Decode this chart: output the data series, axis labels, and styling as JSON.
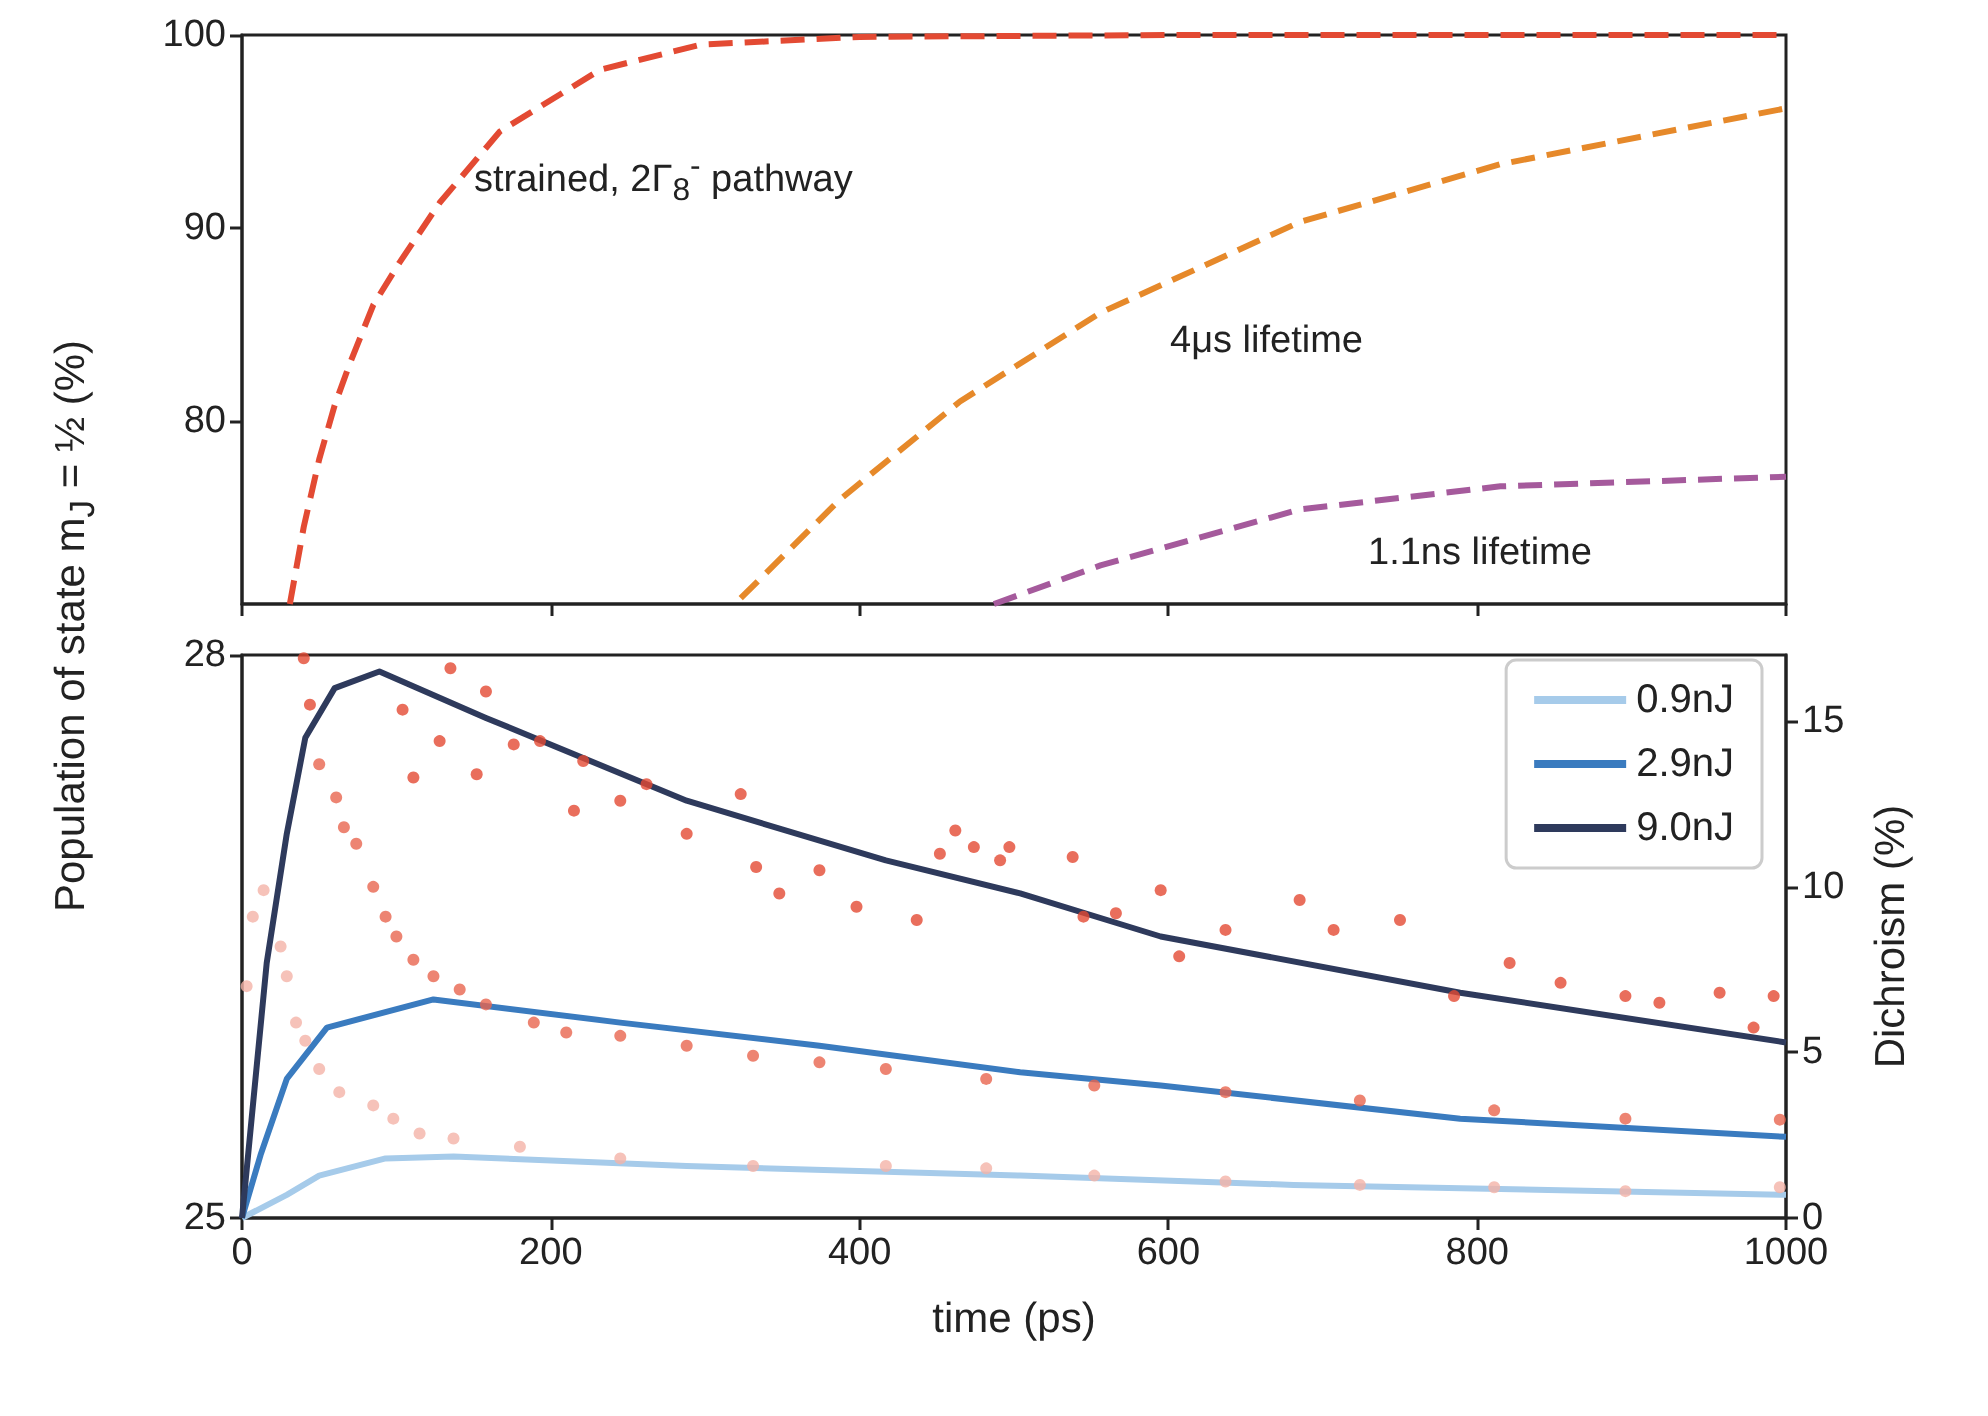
{
  "chart_data": [
    {
      "type": "line",
      "ylabel": "Population of state m$_{J}$ = ½ (%)",
      "xlim": [
        0,
        1000
      ],
      "xticks": [
        0,
        200,
        400,
        600,
        800,
        1000
      ],
      "ylim": [
        70.5,
        100
      ],
      "yticks": [
        80,
        90,
        100
      ],
      "tick_labels": "y",
      "line_style": "dashed",
      "marker": "none",
      "grid": false,
      "legend": false,
      "annotations": [
        "strained, 2Γ$_{8}$$^{-}$ pathway",
        "4μs lifetime",
        "1.1ns lifetime"
      ],
      "series": [
        {
          "color": "#e34a33",
          "x": [
            31,
            40,
            50,
            60,
            70,
            85,
            102,
            128,
            167,
            232,
            297,
            400,
            600,
            800,
            1000
          ],
          "values": [
            70.5,
            74.5,
            78,
            80.8,
            83,
            86,
            88.2,
            91.3,
            95,
            98.2,
            99.5,
            99.9,
            100,
            100,
            100
          ]
        },
        {
          "color": "#e6892a",
          "x": [
            323,
            387,
            465,
            556,
            685,
            815,
            1000
          ],
          "values": [
            70.8,
            75.9,
            81,
            85.6,
            90.3,
            93.3,
            96.2
          ]
        },
        {
          "color": "#a55a9c",
          "x": [
            487,
            556,
            685,
            815,
            1000
          ],
          "values": [
            70.5,
            72.5,
            75.4,
            76.6,
            77.1
          ]
        }
      ]
    },
    {
      "type": "line",
      "xlabel": "time (ps)",
      "y2label": "Dichroism (%)",
      "xlim": [
        0,
        1000
      ],
      "xticks": [
        0,
        200,
        400,
        600,
        800,
        1000
      ],
      "ylim": [
        25,
        28
      ],
      "yticks": [
        25,
        28
      ],
      "y2lim": [
        0,
        17
      ],
      "y2ticks": [
        0,
        5,
        10,
        15
      ],
      "grid": false,
      "legend": "top right",
      "series": [
        {
          "type": "scatter",
          "axis": "y2",
          "color": "#f4b3a8",
          "x": [
            3,
            7,
            14,
            25,
            29,
            35,
            41,
            50,
            63,
            85,
            98,
            115,
            137,
            180,
            245,
            331,
            417,
            482,
            552,
            637,
            724,
            811,
            896,
            996
          ],
          "values": [
            7.0,
            9.1,
            9.9,
            8.2,
            7.3,
            5.9,
            5.35,
            4.5,
            3.8,
            3.4,
            3.0,
            2.55,
            2.4,
            2.15,
            1.8,
            1.57,
            1.57,
            1.5,
            1.28,
            1.1,
            1.0,
            0.93,
            0.81,
            0.93
          ]
        },
        {
          "type": "scatter",
          "axis": "y2",
          "color": "#e8654f",
          "x": [
            50,
            61,
            66,
            74,
            85,
            93,
            100,
            111,
            124,
            141,
            158,
            189,
            210,
            245,
            288,
            331,
            374,
            417,
            482,
            552,
            637,
            724,
            811,
            896,
            996
          ],
          "values": [
            13.7,
            12.7,
            11.8,
            11.3,
            10.0,
            9.1,
            8.5,
            7.8,
            7.3,
            6.9,
            6.45,
            5.9,
            5.6,
            5.5,
            5.2,
            4.9,
            4.7,
            4.5,
            4.2,
            4.0,
            3.8,
            3.55,
            3.25,
            3.0,
            2.97
          ]
        },
        {
          "type": "scatter",
          "axis": "y2",
          "color": "#e34a33",
          "x": [
            40,
            44,
            104,
            111,
            128,
            135,
            152,
            158,
            176,
            193,
            215,
            221,
            245,
            262,
            288,
            323,
            333,
            348,
            374,
            398,
            437,
            452,
            462,
            474,
            491,
            497,
            538,
            545,
            566,
            595,
            607,
            637,
            685,
            707,
            750,
            785,
            821,
            854,
            896,
            918,
            957,
            979,
            992
          ],
          "values": [
            16.9,
            15.5,
            15.35,
            13.3,
            14.4,
            16.6,
            13.4,
            15.9,
            14.3,
            14.4,
            12.3,
            13.8,
            12.6,
            13.1,
            11.6,
            12.8,
            10.6,
            9.8,
            10.5,
            9.4,
            9.0,
            11.0,
            11.7,
            11.2,
            10.8,
            11.2,
            10.9,
            9.1,
            9.2,
            9.9,
            7.9,
            8.7,
            9.6,
            8.7,
            9.0,
            6.7,
            7.7,
            7.1,
            6.7,
            6.5,
            6.8,
            5.75,
            6.7
          ]
        },
        {
          "name": "0.9nJ",
          "axis": "y2",
          "color": "#a6cbea",
          "x": [
            0,
            29,
            50,
            93,
            137,
            288,
            504,
            681,
            1000
          ],
          "values": [
            0,
            0.7,
            1.28,
            1.8,
            1.86,
            1.57,
            1.28,
            1.0,
            0.7
          ]
        },
        {
          "name": "2.9nJ",
          "axis": "y2",
          "color": "#3a7bbf",
          "x": [
            0,
            12,
            29,
            55,
            124,
            245,
            374,
            504,
            595,
            789,
            1000
          ],
          "values": [
            0,
            1.9,
            4.2,
            5.75,
            6.6,
            5.9,
            5.2,
            4.4,
            4.0,
            3.0,
            2.45
          ]
        },
        {
          "name": "9.0nJ",
          "axis": "y2",
          "color": "#2e3a5c",
          "x": [
            0,
            16,
            29,
            41,
            60,
            89,
            158,
            288,
            417,
            504,
            595,
            789,
            1000
          ],
          "values": [
            0,
            7.7,
            11.6,
            14.5,
            16.0,
            16.5,
            15.1,
            12.6,
            10.8,
            9.8,
            8.5,
            6.8,
            5.3
          ]
        }
      ]
    }
  ]
}
